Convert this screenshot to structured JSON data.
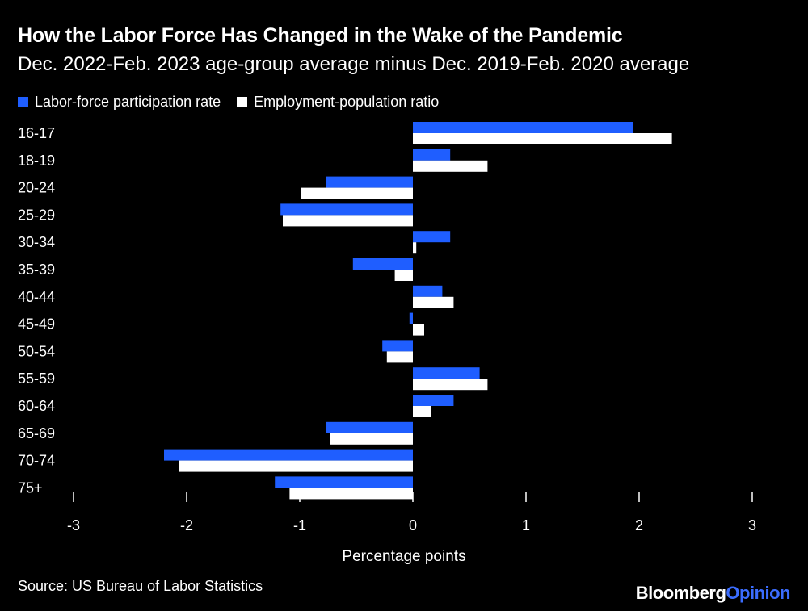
{
  "chart_data": {
    "type": "bar",
    "orientation": "horizontal",
    "title": "How the Labor Force Has Changed in the Wake of the Pandemic",
    "subtitle": "Dec. 2022-Feb. 2023 age-group average minus Dec. 2019-Feb. 2020 average",
    "xlabel": "Percentage points",
    "xlim": [
      -3,
      3
    ],
    "xticks": [
      -3,
      -2,
      -1,
      0,
      1,
      2,
      3
    ],
    "legend_position": "top-left",
    "categories": [
      "16-17",
      "18-19",
      "20-24",
      "25-29",
      "30-34",
      "35-39",
      "40-44",
      "45-49",
      "50-54",
      "55-59",
      "60-64",
      "65-69",
      "70-74",
      "75+"
    ],
    "series": [
      {
        "name": "Labor-force participation rate",
        "color": "#1f5eff",
        "values": [
          1.95,
          0.33,
          -0.77,
          -1.17,
          0.33,
          -0.53,
          0.26,
          -0.03,
          -0.27,
          0.59,
          0.36,
          -0.77,
          -2.2,
          -1.22
        ]
      },
      {
        "name": "Employment-population ratio",
        "color": "#ffffff",
        "values": [
          2.29,
          0.66,
          -0.99,
          -1.15,
          0.03,
          -0.16,
          0.36,
          0.1,
          -0.23,
          0.66,
          0.16,
          -0.73,
          -2.07,
          -1.09
        ]
      }
    ]
  },
  "footer": {
    "source": "Source: US Bureau of Labor Statistics",
    "brand_main": "Bloomberg",
    "brand_accent": "Opinion"
  }
}
